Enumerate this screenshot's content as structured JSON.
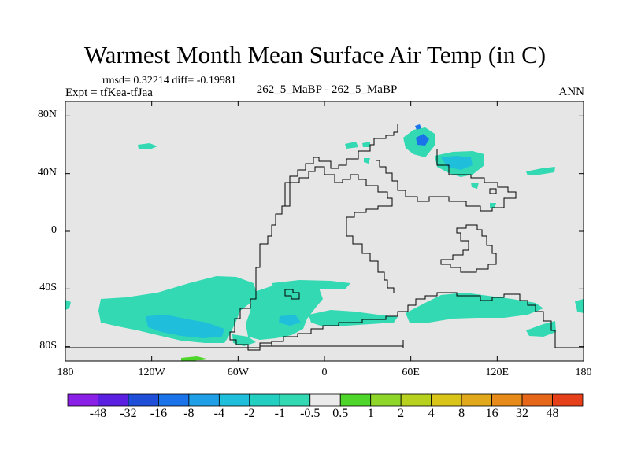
{
  "title": "Warmest Month Mean Surface Air Temp (in C)",
  "stats": "rmsd= 0.32214  diff= -0.19981",
  "expt": "Expt = tfKea-tfJaa",
  "center_label": "262_5_MaBP - 262_5_MaBP",
  "period": "ANN",
  "colors": {
    "background_field": "#e6e6e6",
    "coastline": "#000000",
    "negative_small": "#33d9b2",
    "negative_medium": "#1fb3e0",
    "negative_large": "#1a73e8"
  },
  "map": {
    "projection": "cylindrical-equidistant",
    "lon_range": [
      -180,
      180
    ],
    "lat_range": [
      -90,
      90
    ],
    "y_ticks": [
      {
        "lat": 80,
        "label": "80N"
      },
      {
        "lat": 40,
        "label": "40N"
      },
      {
        "lat": 0,
        "label": "0"
      },
      {
        "lat": -40,
        "label": "40S"
      },
      {
        "lat": -80,
        "label": "80S"
      }
    ],
    "x_ticks": [
      {
        "lon": -180,
        "label": "180"
      },
      {
        "lon": -120,
        "label": "120W"
      },
      {
        "lon": -60,
        "label": "60W"
      },
      {
        "lon": 0,
        "label": "0"
      },
      {
        "lon": 60,
        "label": "60E"
      },
      {
        "lon": 120,
        "label": "120E"
      },
      {
        "lon": 180,
        "label": "180"
      }
    ]
  },
  "colorbar": {
    "colors": [
      "#8a1fe6",
      "#5a1fe0",
      "#1f4fd9",
      "#1a73e8",
      "#1fa0e6",
      "#1fbfdb",
      "#22cfc0",
      "#33d9b2",
      "#ebebeb",
      "#4fd62a",
      "#8fd62a",
      "#b8d11f",
      "#d9c41a",
      "#e0a81a",
      "#e68a1a",
      "#e6661a",
      "#e6401a"
    ],
    "labels": [
      "-48",
      "-32",
      "-16",
      "-8",
      "-4",
      "-2",
      "-1",
      "-0.5",
      "0.5",
      "1",
      "2",
      "4",
      "8",
      "16",
      "32",
      "48"
    ]
  }
}
